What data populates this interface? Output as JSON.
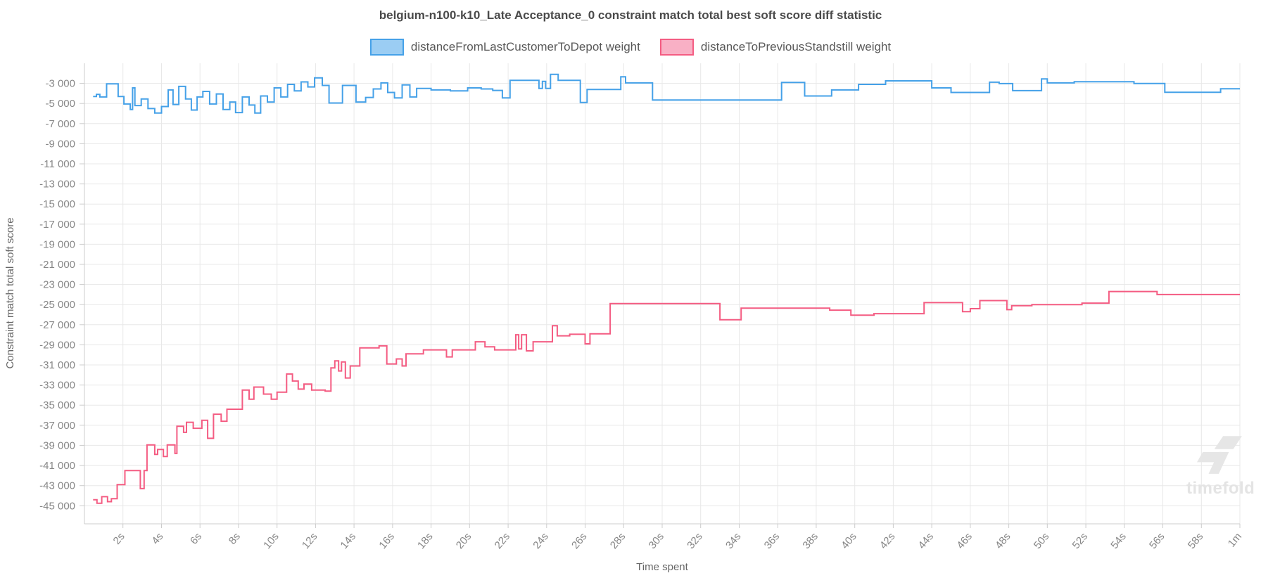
{
  "watermark": {
    "text": "timefold"
  },
  "chart_data": {
    "type": "line",
    "step": true,
    "title": "belgium-n100-k10_Late Acceptance_0 constraint match total best soft score diff statistic",
    "xlabel": "Time spent",
    "ylabel": "Constraint match total soft score",
    "x_unit": "seconds",
    "xlim": [
      0,
      60
    ],
    "ylim": [
      -46800,
      -1000
    ],
    "grid": true,
    "legend_position": "top",
    "grid_color": "#e8e8e8",
    "axis_color": "#cccccc",
    "tick_color": "#878787",
    "x_ticks": [
      {
        "t": 2,
        "label": "2s"
      },
      {
        "t": 4,
        "label": "4s"
      },
      {
        "t": 6,
        "label": "6s"
      },
      {
        "t": 8,
        "label": "8s"
      },
      {
        "t": 10,
        "label": "10s"
      },
      {
        "t": 12,
        "label": "12s"
      },
      {
        "t": 14,
        "label": "14s"
      },
      {
        "t": 16,
        "label": "16s"
      },
      {
        "t": 18,
        "label": "18s"
      },
      {
        "t": 20,
        "label": "20s"
      },
      {
        "t": 22,
        "label": "22s"
      },
      {
        "t": 24,
        "label": "24s"
      },
      {
        "t": 26,
        "label": "26s"
      },
      {
        "t": 28,
        "label": "28s"
      },
      {
        "t": 30,
        "label": "30s"
      },
      {
        "t": 32,
        "label": "32s"
      },
      {
        "t": 34,
        "label": "34s"
      },
      {
        "t": 36,
        "label": "36s"
      },
      {
        "t": 38,
        "label": "38s"
      },
      {
        "t": 40,
        "label": "40s"
      },
      {
        "t": 42,
        "label": "42s"
      },
      {
        "t": 44,
        "label": "44s"
      },
      {
        "t": 46,
        "label": "46s"
      },
      {
        "t": 48,
        "label": "48s"
      },
      {
        "t": 50,
        "label": "50s"
      },
      {
        "t": 52,
        "label": "52s"
      },
      {
        "t": 54,
        "label": "54s"
      },
      {
        "t": 56,
        "label": "56s"
      },
      {
        "t": 58,
        "label": "58s"
      },
      {
        "t": 60,
        "label": "1m"
      }
    ],
    "y_ticks": [
      {
        "v": -3000,
        "label": "-3 000"
      },
      {
        "v": -5000,
        "label": "-5 000"
      },
      {
        "v": -7000,
        "label": "-7 000"
      },
      {
        "v": -9000,
        "label": "-9 000"
      },
      {
        "v": -11000,
        "label": "-11 000"
      },
      {
        "v": -13000,
        "label": "-13 000"
      },
      {
        "v": -15000,
        "label": "-15 000"
      },
      {
        "v": -17000,
        "label": "-17 000"
      },
      {
        "v": -19000,
        "label": "-19 000"
      },
      {
        "v": -21000,
        "label": "-21 000"
      },
      {
        "v": -23000,
        "label": "-23 000"
      },
      {
        "v": -25000,
        "label": "-25 000"
      },
      {
        "v": -27000,
        "label": "-27 000"
      },
      {
        "v": -29000,
        "label": "-29 000"
      },
      {
        "v": -31000,
        "label": "-31 000"
      },
      {
        "v": -33000,
        "label": "-33 000"
      },
      {
        "v": -35000,
        "label": "-35 000"
      },
      {
        "v": -37000,
        "label": "-37 000"
      },
      {
        "v": -39000,
        "label": "-39 000"
      },
      {
        "v": -41000,
        "label": "-41 000"
      },
      {
        "v": -43000,
        "label": "-43 000"
      },
      {
        "v": -45000,
        "label": "-45 000"
      }
    ],
    "series": [
      {
        "name": "distanceFromLastCustomerToDepot weight",
        "color": "#45a1e8",
        "legend_fill": "#9bcdf3",
        "points": [
          [
            0.45,
            -4300
          ],
          [
            0.62,
            -4100
          ],
          [
            0.8,
            -4350
          ],
          [
            1.15,
            -3050
          ],
          [
            1.75,
            -4300
          ],
          [
            2.05,
            -5050
          ],
          [
            2.38,
            -5600
          ],
          [
            2.5,
            -3450
          ],
          [
            2.62,
            -5200
          ],
          [
            2.95,
            -4550
          ],
          [
            3.3,
            -5500
          ],
          [
            3.65,
            -5950
          ],
          [
            4.0,
            -5300
          ],
          [
            4.35,
            -3650
          ],
          [
            4.6,
            -5100
          ],
          [
            4.9,
            -3300
          ],
          [
            5.25,
            -4550
          ],
          [
            5.55,
            -5650
          ],
          [
            5.85,
            -4350
          ],
          [
            6.15,
            -3800
          ],
          [
            6.5,
            -5050
          ],
          [
            6.85,
            -4050
          ],
          [
            7.2,
            -5600
          ],
          [
            7.55,
            -4850
          ],
          [
            7.85,
            -5900
          ],
          [
            8.2,
            -4350
          ],
          [
            8.55,
            -5150
          ],
          [
            8.85,
            -5950
          ],
          [
            9.15,
            -4250
          ],
          [
            9.5,
            -4850
          ],
          [
            9.85,
            -3450
          ],
          [
            10.2,
            -4350
          ],
          [
            10.55,
            -3100
          ],
          [
            10.9,
            -3750
          ],
          [
            11.25,
            -2850
          ],
          [
            11.6,
            -3350
          ],
          [
            11.95,
            -2450
          ],
          [
            12.35,
            -3200
          ],
          [
            12.7,
            -4950
          ],
          [
            13.4,
            -3200
          ],
          [
            14.1,
            -4850
          ],
          [
            14.6,
            -4400
          ],
          [
            15.0,
            -3550
          ],
          [
            15.4,
            -2950
          ],
          [
            15.75,
            -3900
          ],
          [
            16.1,
            -4450
          ],
          [
            16.5,
            -3150
          ],
          [
            16.9,
            -4350
          ],
          [
            17.25,
            -3500
          ],
          [
            18.0,
            -3650
          ],
          [
            19.0,
            -3750
          ],
          [
            19.9,
            -3450
          ],
          [
            20.6,
            -3550
          ],
          [
            21.2,
            -3700
          ],
          [
            21.7,
            -4450
          ],
          [
            22.1,
            -2700
          ],
          [
            23.6,
            -3500
          ],
          [
            23.78,
            -2800
          ],
          [
            23.95,
            -3500
          ],
          [
            24.2,
            -2100
          ],
          [
            24.6,
            -2700
          ],
          [
            25.75,
            -4900
          ],
          [
            26.1,
            -3600
          ],
          [
            27.85,
            -2350
          ],
          [
            28.1,
            -2950
          ],
          [
            29.5,
            -4650
          ],
          [
            36.2,
            -2900
          ],
          [
            37.4,
            -4250
          ],
          [
            38.8,
            -3650
          ],
          [
            40.2,
            -3100
          ],
          [
            41.6,
            -2750
          ],
          [
            44.0,
            -3450
          ],
          [
            45.0,
            -3900
          ],
          [
            47.0,
            -2880
          ],
          [
            47.5,
            -3020
          ],
          [
            48.2,
            -3720
          ],
          [
            49.7,
            -2560
          ],
          [
            50.0,
            -2950
          ],
          [
            51.4,
            -2830
          ],
          [
            54.5,
            -3010
          ],
          [
            56.1,
            -3890
          ],
          [
            59.0,
            -3540
          ],
          [
            60,
            -3540
          ]
        ]
      },
      {
        "name": "distanceToPreviousStandstill weight",
        "color": "#f45c82",
        "legend_fill": "#f9b0c5",
        "points": [
          [
            0.45,
            -44400
          ],
          [
            0.65,
            -44750
          ],
          [
            0.9,
            -44100
          ],
          [
            1.2,
            -44600
          ],
          [
            1.4,
            -44300
          ],
          [
            1.7,
            -42900
          ],
          [
            2.1,
            -41500
          ],
          [
            2.9,
            -43300
          ],
          [
            3.1,
            -41500
          ],
          [
            3.25,
            -38950
          ],
          [
            3.65,
            -39900
          ],
          [
            3.8,
            -39400
          ],
          [
            4.1,
            -40100
          ],
          [
            4.3,
            -38950
          ],
          [
            4.7,
            -39800
          ],
          [
            4.8,
            -37100
          ],
          [
            5.15,
            -37700
          ],
          [
            5.3,
            -36700
          ],
          [
            5.65,
            -37300
          ],
          [
            6.1,
            -36500
          ],
          [
            6.4,
            -38300
          ],
          [
            6.7,
            -35900
          ],
          [
            7.1,
            -36600
          ],
          [
            7.4,
            -35400
          ],
          [
            8.2,
            -33500
          ],
          [
            8.55,
            -34400
          ],
          [
            8.8,
            -33200
          ],
          [
            9.3,
            -33900
          ],
          [
            9.7,
            -34400
          ],
          [
            10.0,
            -33700
          ],
          [
            10.5,
            -31900
          ],
          [
            10.8,
            -32600
          ],
          [
            11.1,
            -33400
          ],
          [
            11.4,
            -32900
          ],
          [
            11.8,
            -33500
          ],
          [
            12.5,
            -33600
          ],
          [
            12.8,
            -31300
          ],
          [
            13.0,
            -30600
          ],
          [
            13.2,
            -31600
          ],
          [
            13.35,
            -30700
          ],
          [
            13.55,
            -32300
          ],
          [
            13.8,
            -31100
          ],
          [
            14.3,
            -29300
          ],
          [
            15.3,
            -29100
          ],
          [
            15.7,
            -30900
          ],
          [
            16.2,
            -30400
          ],
          [
            16.5,
            -31100
          ],
          [
            16.7,
            -29900
          ],
          [
            17.6,
            -29500
          ],
          [
            18.8,
            -30200
          ],
          [
            19.1,
            -29500
          ],
          [
            20.3,
            -28700
          ],
          [
            20.8,
            -29200
          ],
          [
            21.3,
            -29500
          ],
          [
            22.4,
            -28000
          ],
          [
            22.55,
            -29400
          ],
          [
            22.7,
            -28000
          ],
          [
            22.95,
            -29600
          ],
          [
            23.3,
            -28700
          ],
          [
            24.3,
            -27100
          ],
          [
            24.55,
            -28100
          ],
          [
            25.2,
            -27950
          ],
          [
            26.0,
            -28900
          ],
          [
            26.25,
            -27900
          ],
          [
            27.3,
            -24900
          ],
          [
            33.0,
            -26500
          ],
          [
            34.1,
            -25350
          ],
          [
            38.7,
            -25550
          ],
          [
            39.8,
            -26050
          ],
          [
            41.0,
            -25900
          ],
          [
            43.6,
            -24800
          ],
          [
            45.6,
            -25700
          ],
          [
            46.0,
            -25400
          ],
          [
            46.5,
            -24600
          ],
          [
            47.9,
            -25500
          ],
          [
            48.15,
            -25100
          ],
          [
            49.2,
            -25000
          ],
          [
            51.8,
            -24850
          ],
          [
            53.2,
            -23700
          ],
          [
            55.7,
            -24000
          ],
          [
            60,
            -24000
          ]
        ]
      }
    ]
  }
}
